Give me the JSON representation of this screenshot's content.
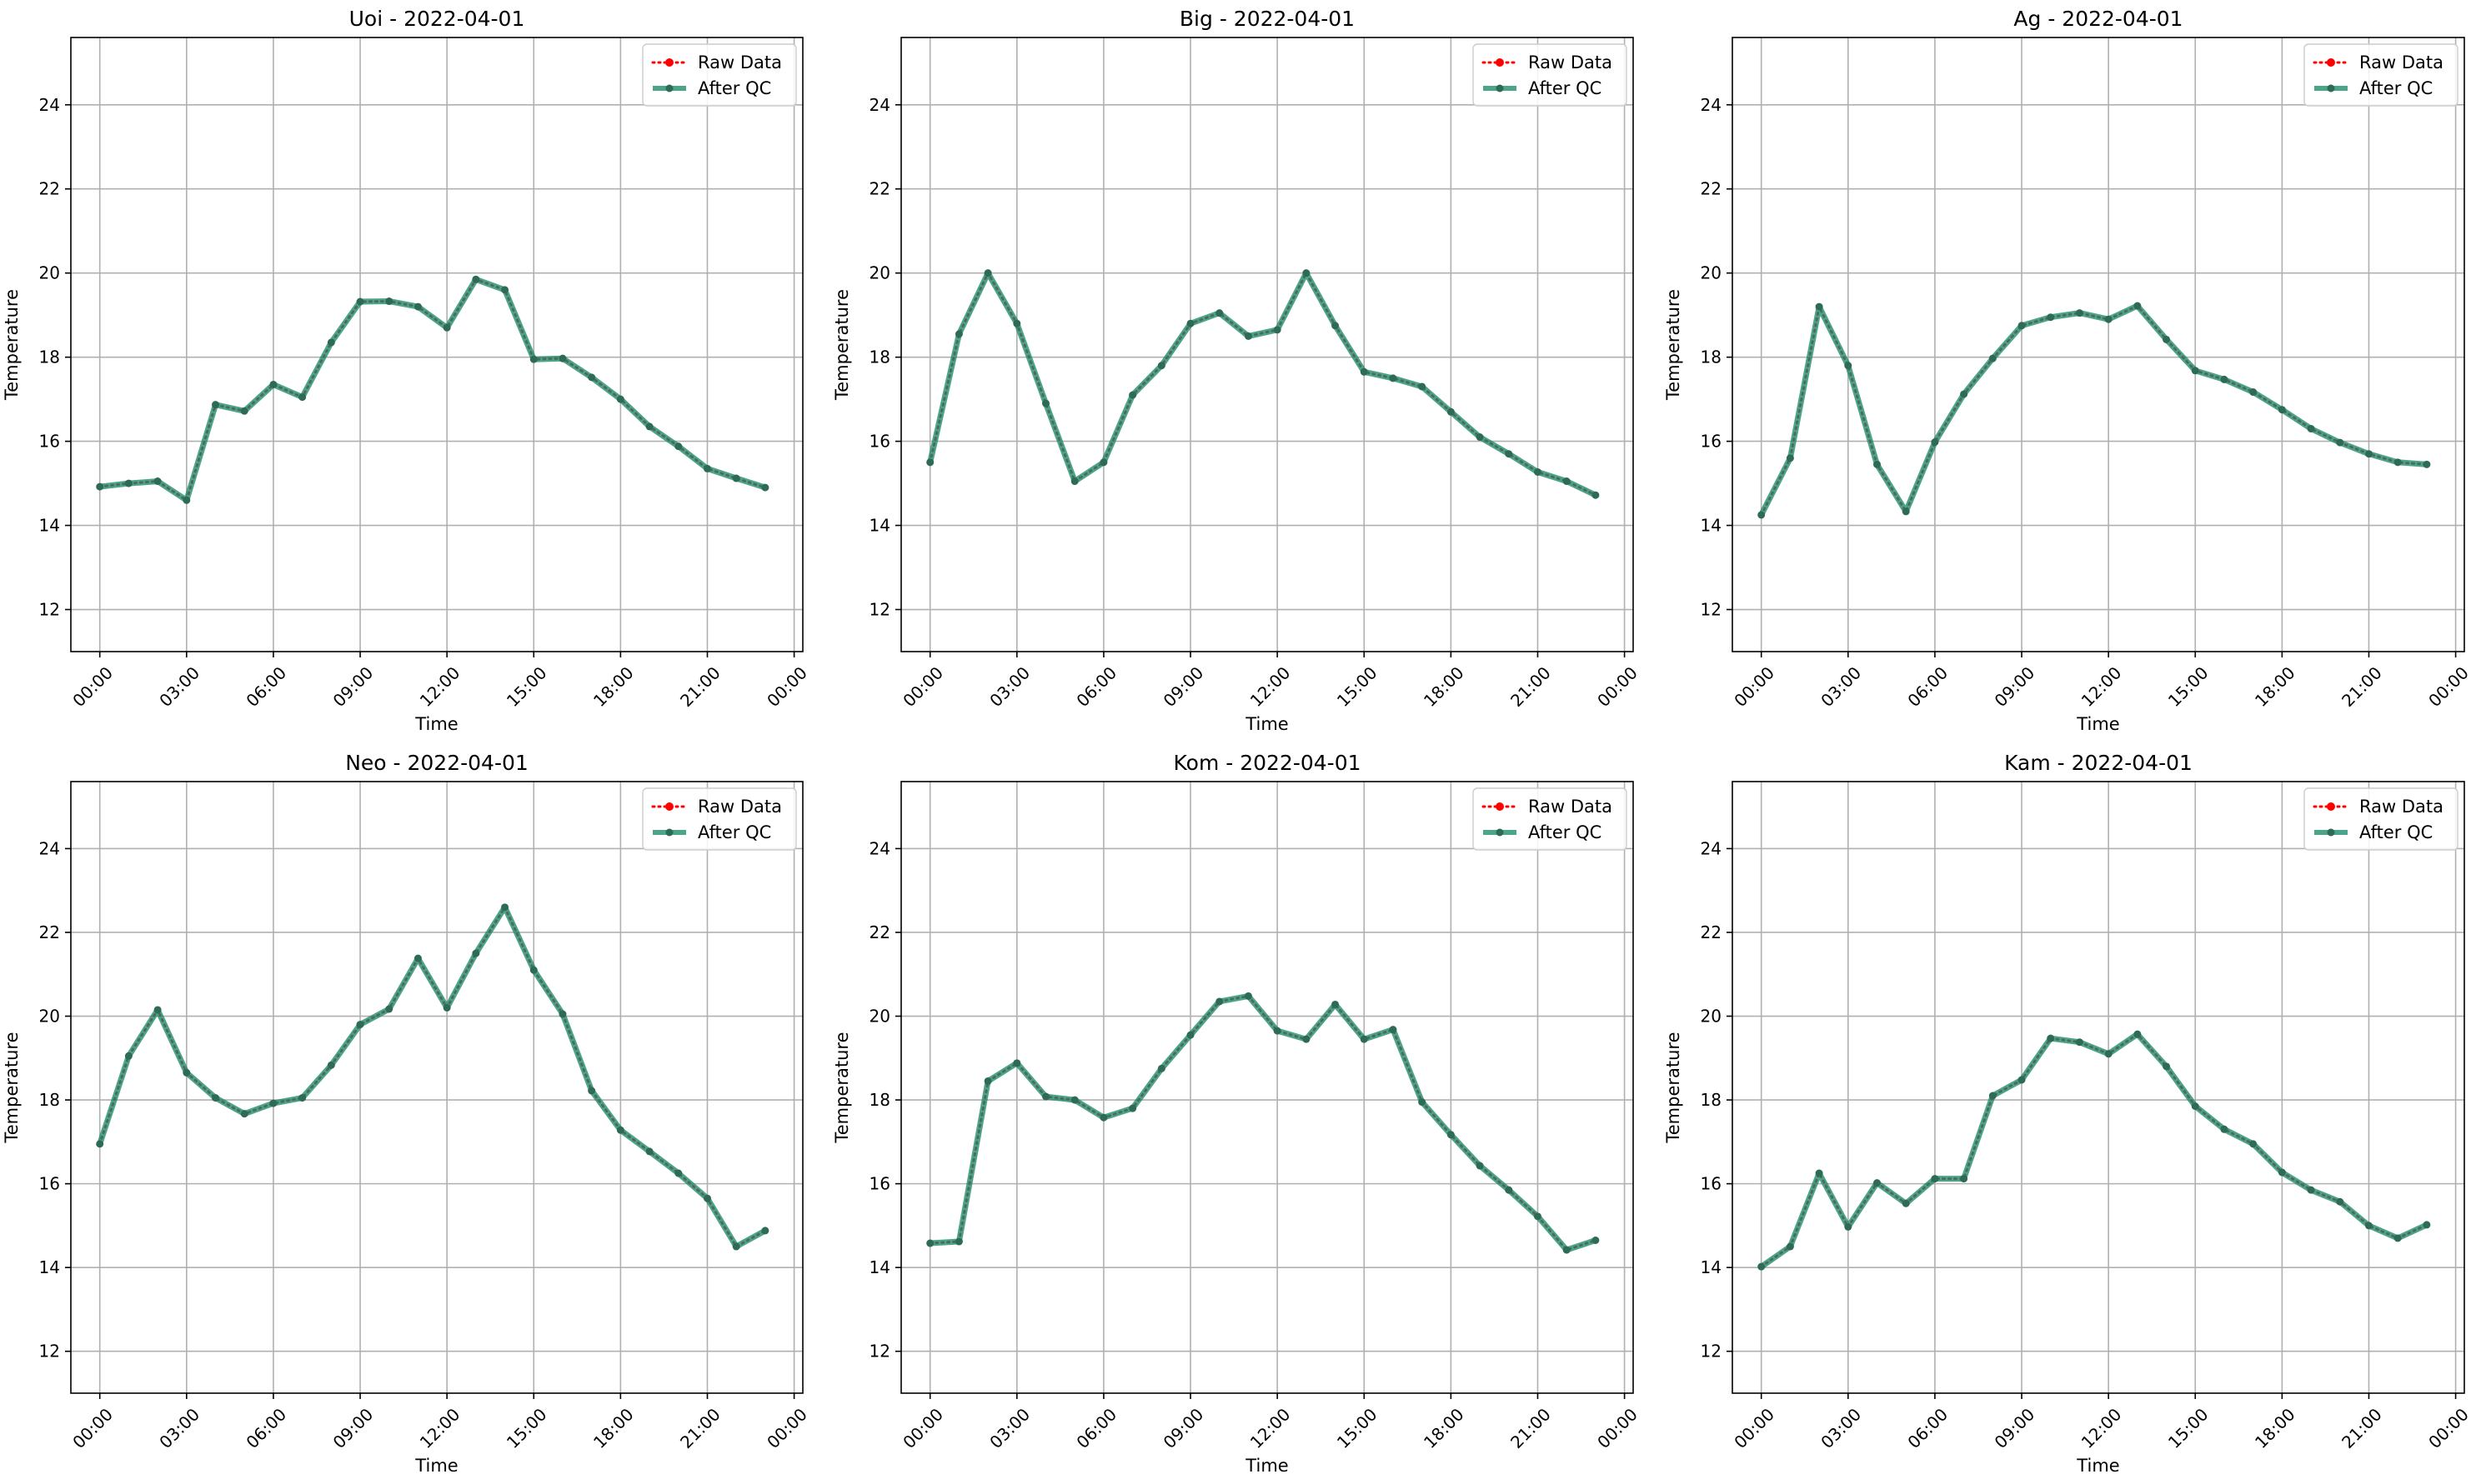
{
  "figure": {
    "colors": {
      "raw": "#ff0000",
      "qc": "#1a8a6a",
      "qc_marker": "#2e6b55",
      "grid": "#b0b0b0",
      "axes": "#000000"
    }
  },
  "chart_data": [
    {
      "type": "line",
      "title": "Uoi - 2022-04-01",
      "xlabel": "Time",
      "ylabel": "Temperature",
      "x_ticks": [
        "00:00",
        "03:00",
        "06:00",
        "09:00",
        "12:00",
        "15:00",
        "18:00",
        "21:00",
        "00:00"
      ],
      "y_ticks": [
        12,
        14,
        16,
        18,
        20,
        22,
        24
      ],
      "xlim": [
        -1.0,
        24.3
      ],
      "ylim": [
        11.0,
        25.6
      ],
      "grid": true,
      "legend_position": "top-right",
      "x_hours": [
        0,
        1,
        2,
        3,
        4,
        5,
        6,
        7,
        8,
        9,
        10,
        11,
        12,
        13,
        14,
        15,
        16,
        17,
        18,
        19,
        20,
        21,
        22,
        23
      ],
      "series": [
        {
          "name": "Raw Data",
          "style": "dotted-red",
          "values": [
            14.92,
            15.0,
            15.05,
            14.6,
            16.87,
            16.72,
            17.35,
            17.05,
            18.35,
            19.32,
            19.33,
            19.2,
            18.7,
            19.85,
            19.6,
            17.95,
            17.97,
            17.52,
            17.0,
            16.35,
            15.88,
            15.35,
            15.12,
            14.9
          ]
        },
        {
          "name": "After QC",
          "style": "solid-green",
          "values": [
            14.92,
            15.0,
            15.05,
            14.6,
            16.87,
            16.72,
            17.35,
            17.05,
            18.35,
            19.32,
            19.33,
            19.2,
            18.7,
            19.85,
            19.6,
            17.95,
            17.97,
            17.52,
            17.0,
            16.35,
            15.88,
            15.35,
            15.12,
            14.9
          ]
        }
      ]
    },
    {
      "type": "line",
      "title": "Big - 2022-04-01",
      "xlabel": "Time",
      "ylabel": "Temperature",
      "x_ticks": [
        "00:00",
        "03:00",
        "06:00",
        "09:00",
        "12:00",
        "15:00",
        "18:00",
        "21:00",
        "00:00"
      ],
      "y_ticks": [
        12,
        14,
        16,
        18,
        20,
        22,
        24
      ],
      "xlim": [
        -1.0,
        24.3
      ],
      "ylim": [
        11.0,
        25.6
      ],
      "grid": true,
      "legend_position": "top-right",
      "x_hours": [
        0,
        1,
        2,
        3,
        4,
        5,
        6,
        7,
        8,
        9,
        10,
        11,
        12,
        13,
        14,
        15,
        16,
        17,
        18,
        19,
        20,
        21,
        22,
        23
      ],
      "series": [
        {
          "name": "Raw Data",
          "style": "dotted-red",
          "values": [
            15.5,
            18.55,
            20.0,
            18.8,
            16.9,
            15.05,
            15.5,
            17.1,
            17.8,
            18.8,
            19.05,
            18.5,
            18.65,
            20.0,
            18.75,
            17.65,
            17.5,
            17.3,
            16.7,
            16.1,
            15.7,
            15.27,
            15.05,
            14.72
          ]
        },
        {
          "name": "After QC",
          "style": "solid-green",
          "values": [
            15.5,
            18.55,
            20.0,
            18.8,
            16.9,
            15.05,
            15.5,
            17.1,
            17.8,
            18.8,
            19.05,
            18.5,
            18.65,
            20.0,
            18.75,
            17.65,
            17.5,
            17.3,
            16.7,
            16.1,
            15.7,
            15.27,
            15.05,
            14.72
          ]
        }
      ]
    },
    {
      "type": "line",
      "title": "Ag - 2022-04-01",
      "xlabel": "Time",
      "ylabel": "Temperature",
      "x_ticks": [
        "00:00",
        "03:00",
        "06:00",
        "09:00",
        "12:00",
        "15:00",
        "18:00",
        "21:00",
        "00:00"
      ],
      "y_ticks": [
        12,
        14,
        16,
        18,
        20,
        22,
        24
      ],
      "xlim": [
        -1.0,
        24.3
      ],
      "ylim": [
        11.0,
        25.6
      ],
      "grid": true,
      "legend_position": "top-right",
      "x_hours": [
        0,
        1,
        2,
        3,
        4,
        5,
        6,
        7,
        8,
        9,
        10,
        11,
        12,
        13,
        14,
        15,
        16,
        17,
        18,
        19,
        20,
        21,
        22,
        23
      ],
      "series": [
        {
          "name": "Raw Data",
          "style": "dotted-red",
          "values": [
            14.25,
            15.6,
            19.2,
            17.8,
            15.45,
            14.33,
            15.98,
            17.12,
            17.97,
            18.75,
            18.95,
            19.05,
            18.9,
            19.22,
            18.42,
            17.68,
            17.47,
            17.17,
            16.75,
            16.3,
            15.97,
            15.7,
            15.5,
            15.45
          ]
        },
        {
          "name": "After QC",
          "style": "solid-green",
          "values": [
            14.25,
            15.6,
            19.2,
            17.8,
            15.45,
            14.33,
            15.98,
            17.12,
            17.97,
            18.75,
            18.95,
            19.05,
            18.9,
            19.22,
            18.42,
            17.68,
            17.47,
            17.17,
            16.75,
            16.3,
            15.97,
            15.7,
            15.5,
            15.45
          ]
        }
      ]
    },
    {
      "type": "line",
      "title": "Neo - 2022-04-01",
      "xlabel": "Time",
      "ylabel": "Temperature",
      "x_ticks": [
        "00:00",
        "03:00",
        "06:00",
        "09:00",
        "12:00",
        "15:00",
        "18:00",
        "21:00",
        "00:00"
      ],
      "y_ticks": [
        12,
        14,
        16,
        18,
        20,
        22,
        24
      ],
      "xlim": [
        -1.0,
        24.3
      ],
      "ylim": [
        11.0,
        25.6
      ],
      "grid": true,
      "legend_position": "top-right",
      "x_hours": [
        0,
        1,
        2,
        3,
        4,
        5,
        6,
        7,
        8,
        9,
        10,
        11,
        12,
        13,
        14,
        15,
        16,
        17,
        18,
        19,
        20,
        21,
        22,
        23
      ],
      "series": [
        {
          "name": "Raw Data",
          "style": "dotted-red",
          "values": [
            16.95,
            19.05,
            20.15,
            18.65,
            18.05,
            17.67,
            17.92,
            18.05,
            18.83,
            19.8,
            20.17,
            21.38,
            20.2,
            21.5,
            22.6,
            21.1,
            20.05,
            18.22,
            17.28,
            16.77,
            16.25,
            15.65,
            14.5,
            14.88
          ]
        },
        {
          "name": "After QC",
          "style": "solid-green",
          "values": [
            16.95,
            19.05,
            20.15,
            18.65,
            18.05,
            17.67,
            17.92,
            18.05,
            18.83,
            19.8,
            20.17,
            21.38,
            20.2,
            21.5,
            22.6,
            21.1,
            20.05,
            18.22,
            17.28,
            16.77,
            16.25,
            15.65,
            14.5,
            14.88
          ]
        }
      ]
    },
    {
      "type": "line",
      "title": "Kom - 2022-04-01",
      "xlabel": "Time",
      "ylabel": "Temperature",
      "x_ticks": [
        "00:00",
        "03:00",
        "06:00",
        "09:00",
        "12:00",
        "15:00",
        "18:00",
        "21:00",
        "00:00"
      ],
      "y_ticks": [
        12,
        14,
        16,
        18,
        20,
        22,
        24
      ],
      "xlim": [
        -1.0,
        24.3
      ],
      "ylim": [
        11.0,
        25.6
      ],
      "grid": true,
      "legend_position": "top-right",
      "x_hours": [
        0,
        1,
        2,
        3,
        4,
        5,
        6,
        7,
        8,
        9,
        10,
        11,
        12,
        13,
        14,
        15,
        16,
        17,
        18,
        19,
        20,
        21,
        22,
        23
      ],
      "series": [
        {
          "name": "Raw Data",
          "style": "dotted-red",
          "values": [
            14.58,
            14.62,
            18.45,
            18.88,
            18.08,
            18.0,
            17.58,
            17.8,
            18.75,
            19.55,
            20.35,
            20.48,
            19.65,
            19.45,
            20.28,
            19.45,
            19.68,
            17.95,
            17.17,
            16.43,
            15.85,
            15.22,
            14.42,
            14.65
          ]
        },
        {
          "name": "After QC",
          "style": "solid-green",
          "values": [
            14.58,
            14.62,
            18.45,
            18.88,
            18.08,
            18.0,
            17.58,
            17.8,
            18.75,
            19.55,
            20.35,
            20.48,
            19.65,
            19.45,
            20.28,
            19.45,
            19.68,
            17.95,
            17.17,
            16.43,
            15.85,
            15.22,
            14.42,
            14.65
          ]
        }
      ]
    },
    {
      "type": "line",
      "title": "Kam - 2022-04-01",
      "xlabel": "Time",
      "ylabel": "Temperature",
      "x_ticks": [
        "00:00",
        "03:00",
        "06:00",
        "09:00",
        "12:00",
        "15:00",
        "18:00",
        "21:00",
        "00:00"
      ],
      "y_ticks": [
        12,
        14,
        16,
        18,
        20,
        22,
        24
      ],
      "xlim": [
        -1.0,
        24.3
      ],
      "ylim": [
        11.0,
        25.6
      ],
      "grid": true,
      "legend_position": "top-right",
      "x_hours": [
        0,
        1,
        2,
        3,
        4,
        5,
        6,
        7,
        8,
        9,
        10,
        11,
        12,
        13,
        14,
        15,
        16,
        17,
        18,
        19,
        20,
        21,
        22,
        23
      ],
      "series": [
        {
          "name": "Raw Data",
          "style": "dotted-red",
          "values": [
            14.02,
            14.5,
            16.25,
            14.97,
            16.02,
            15.53,
            16.12,
            16.12,
            18.1,
            18.48,
            19.47,
            19.38,
            19.1,
            19.57,
            18.8,
            17.85,
            17.3,
            16.95,
            16.27,
            15.85,
            15.57,
            15.0,
            14.7,
            15.02
          ]
        },
        {
          "name": "After QC",
          "style": "solid-green",
          "values": [
            14.02,
            14.5,
            16.25,
            14.97,
            16.02,
            15.53,
            16.12,
            16.12,
            18.1,
            18.48,
            19.47,
            19.38,
            19.1,
            19.57,
            18.8,
            17.85,
            17.3,
            16.95,
            16.27,
            15.85,
            15.57,
            15.0,
            14.7,
            15.02
          ]
        }
      ]
    }
  ]
}
